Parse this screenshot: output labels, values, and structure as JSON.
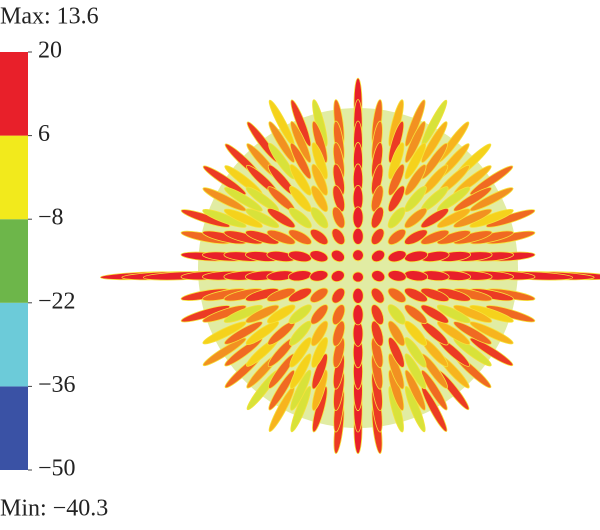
{
  "chart_data": {
    "type": "pattern",
    "annotations": [
      "Max: 13.6",
      "Min: −40.3"
    ],
    "colorbar": {
      "lim": [
        -50,
        20
      ],
      "ticks": [
        {
          "value": -50,
          "label": "−50"
        },
        {
          "value": -36,
          "label": "−36"
        },
        {
          "value": -22,
          "label": "−22"
        },
        {
          "value": -8,
          "label": "−8"
        },
        6,
        20
      ],
      "colors": [
        "#3a52a5",
        "#6ccbd9",
        "#6db64a",
        "#f2ea1c",
        "#e8202a"
      ]
    }
  }
}
